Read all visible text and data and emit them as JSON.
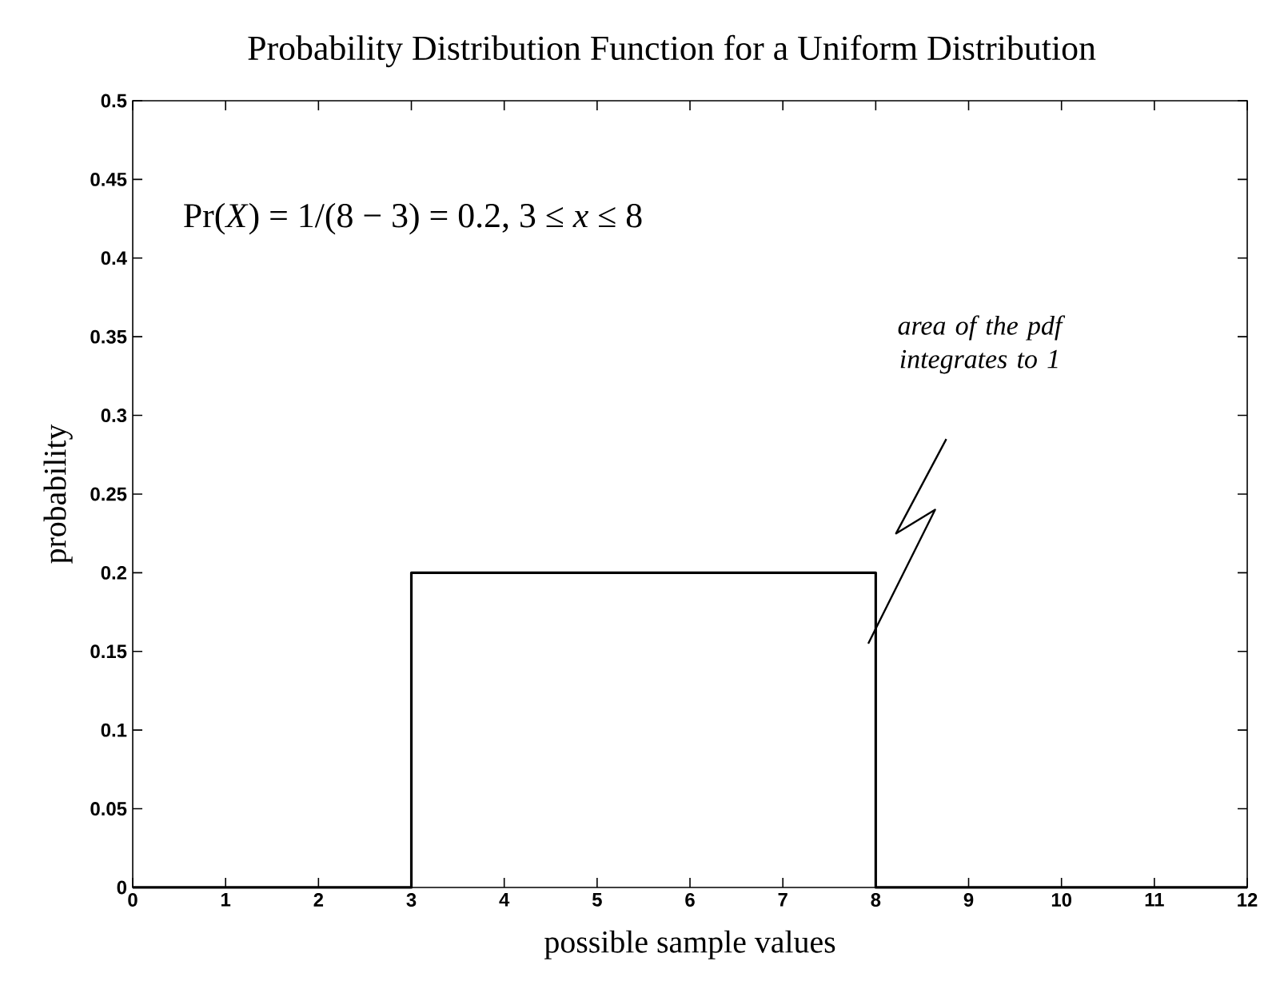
{
  "chart_data": {
    "type": "line",
    "title": "Probability Distribution Function for a Uniform Distribution",
    "xlabel": "possible sample values",
    "ylabel": "probability",
    "x": [
      0,
      3,
      3,
      8,
      8,
      12
    ],
    "values": [
      0,
      0,
      0.2,
      0.2,
      0,
      0
    ],
    "color": "#000000",
    "xlim": [
      0,
      12
    ],
    "ylim": [
      0,
      0.5
    ],
    "xticks": [
      0,
      1,
      2,
      3,
      4,
      5,
      6,
      7,
      8,
      9,
      10,
      11,
      12
    ],
    "yticks": [
      0,
      0.05,
      0.1,
      0.15,
      0.2,
      0.25,
      0.3,
      0.35,
      0.4,
      0.45,
      0.5
    ],
    "annotations": [
      "Pr(*X*)  =  1/(8 − 3)  =  0.2,   3 ≤ *x* ≤ 8",
      "area of the pdf integrates to 1"
    ]
  }
}
